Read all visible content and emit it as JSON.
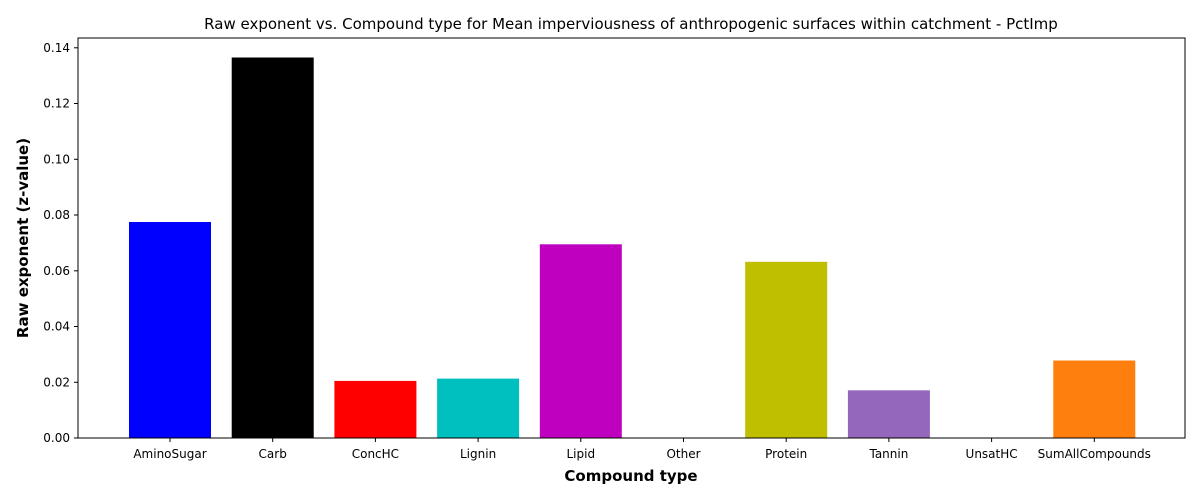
{
  "chart_data": {
    "type": "bar",
    "title": "Raw exponent vs. Compound type for Mean imperviousness of anthropogenic surfaces within catchment - PctImp",
    "xlabel": "Compound type",
    "ylabel": "Raw exponent (z-value)",
    "categories": [
      "AminoSugar",
      "Carb",
      "ConcHC",
      "Lignin",
      "Lipid",
      "Other",
      "Protein",
      "Tannin",
      "UnsatHC",
      "SumAllCompounds"
    ],
    "values": [
      0.0775,
      0.1365,
      0.0205,
      0.0213,
      0.0695,
      0.0,
      0.0632,
      0.0171,
      0.0,
      0.0278
    ],
    "colors": [
      "#0000ff",
      "#000000",
      "#ff0000",
      "#00bfbf",
      "#bf00bf",
      "#ffffff",
      "#bfbf00",
      "#9467bd",
      "#ffffff",
      "#ff7f0e"
    ],
    "ylim": [
      0,
      0.1435
    ],
    "yticks": [
      0.0,
      0.02,
      0.04,
      0.06,
      0.08,
      0.1,
      0.12,
      0.14
    ],
    "ytick_labels": [
      "0.00",
      "0.02",
      "0.04",
      "0.06",
      "0.08",
      "0.10",
      "0.12",
      "0.14"
    ],
    "grid": false,
    "legend": "none"
  }
}
